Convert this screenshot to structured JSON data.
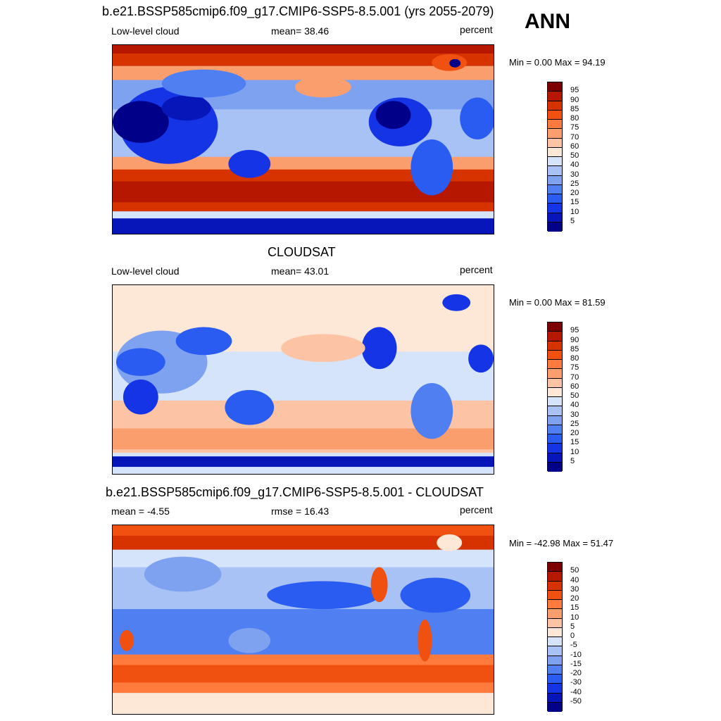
{
  "season": "ANN",
  "panels": [
    {
      "title": "b.e21.BSSP585cmip6.f09_g17.CMIP6-SSP5-8.5.001 (yrs 2055-2079)",
      "left": "Low-level cloud",
      "center": "mean=  38.46",
      "right": "percent",
      "minmax": "Min =    0.00 Max =  94.19"
    },
    {
      "title": "CLOUDSAT",
      "left": "Low-level cloud",
      "center": "mean=  43.01",
      "right": "percent",
      "minmax": "Min =    0.00 Max =  81.59"
    },
    {
      "title": "b.e21.BSSP585cmip6.f09_g17.CMIP6-SSP5-8.5.001 - CLOUDSAT",
      "left": "mean =  -4.55",
      "center": "rmse =  16.43",
      "right": "percent",
      "minmax": "Min = -42.98 Max =  51.47"
    }
  ],
  "colorbars": {
    "cloud": {
      "labels": [
        "95",
        "90",
        "85",
        "80",
        "75",
        "70",
        "60",
        "50",
        "40",
        "30",
        "25",
        "20",
        "15",
        "10",
        "5"
      ],
      "colors": [
        "#7d0000",
        "#b51700",
        "#d63300",
        "#f05010",
        "#ff7a3d",
        "#fb9e6e",
        "#fcc4a4",
        "#fde8d8",
        "#d6e4fb",
        "#a8c2f5",
        "#7fa2f0",
        "#4f7ff0",
        "#2a5cf2",
        "#1534e6",
        "#0716b8",
        "#000088"
      ]
    },
    "diff": {
      "labels": [
        "50",
        "40",
        "30",
        "20",
        "15",
        "10",
        "5",
        "0",
        "-5",
        "-10",
        "-15",
        "-20",
        "-30",
        "-40",
        "-50"
      ],
      "colors": [
        "#7d0000",
        "#b51700",
        "#d63300",
        "#f05010",
        "#ff7a3d",
        "#fb9e6e",
        "#fcc4a4",
        "#fde8d8",
        "#d6e4fb",
        "#a8c2f5",
        "#7fa2f0",
        "#4f7ff0",
        "#2a5cf2",
        "#1534e6",
        "#0716b8",
        "#000088"
      ]
    }
  }
}
